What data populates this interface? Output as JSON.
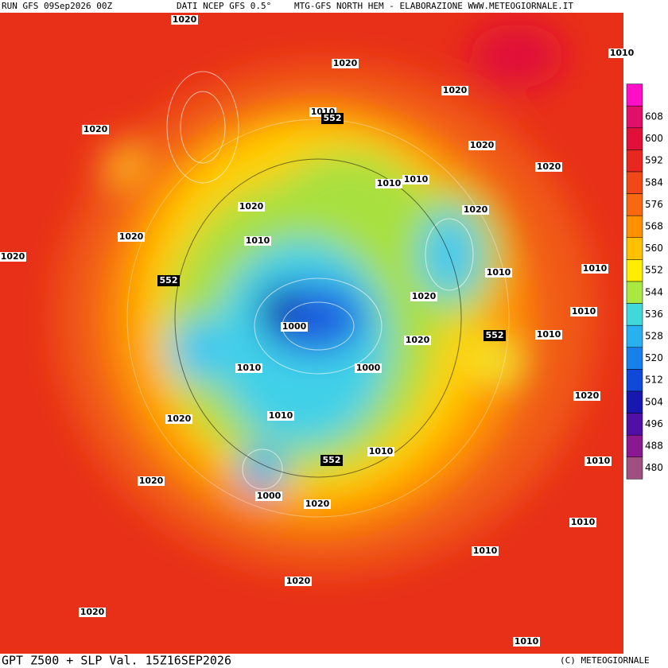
{
  "header": {
    "run": "RUN GFS 09Sep2026 00Z",
    "source": "DATI NCEP GFS 0.5°",
    "credit": "MTG-GFS NORTH HEM - ELABORAZIONE WWW.METEOGIORNALE.IT"
  },
  "footer": {
    "title": "GPT Z500 + SLP Val. 15Z16SEP2026",
    "copyright": "(C) METEOGIORNALE"
  },
  "colorbar": {
    "levels": [
      608,
      600,
      592,
      584,
      576,
      568,
      560,
      552,
      544,
      536,
      528,
      520,
      512,
      504,
      496,
      488,
      480
    ],
    "colors": [
      "#e01068",
      "#e01038",
      "#e82820",
      "#f04818",
      "#f86810",
      "#ff9000",
      "#ffc000",
      "#ffee00",
      "#a8e840",
      "#40d8d8",
      "#28b0f0",
      "#1880e8",
      "#1048d8",
      "#1818b0",
      "#5010a8",
      "#8a1890",
      "#a05080"
    ],
    "top_color": "#ff10c8"
  },
  "contour_labels": [
    {
      "text": "1020",
      "boxed": false
    },
    {
      "text": "1020",
      "boxed": false
    },
    {
      "text": "1010",
      "boxed": false
    },
    {
      "text": "1020",
      "boxed": false
    },
    {
      "text": "1010",
      "boxed": false
    },
    {
      "text": "552",
      "boxed": true
    },
    {
      "text": "1020",
      "boxed": false
    },
    {
      "text": "1020",
      "boxed": false
    },
    {
      "text": "1020",
      "boxed": false
    },
    {
      "text": "1010",
      "boxed": false
    },
    {
      "text": "1010",
      "boxed": false
    },
    {
      "text": "1020",
      "boxed": false
    },
    {
      "text": "1020",
      "boxed": false
    },
    {
      "text": "1020",
      "boxed": false
    },
    {
      "text": "1010",
      "boxed": false
    },
    {
      "text": "1020",
      "boxed": false
    },
    {
      "text": "552",
      "boxed": true
    },
    {
      "text": "1010",
      "boxed": false
    },
    {
      "text": "1010",
      "boxed": false
    },
    {
      "text": "1020",
      "boxed": false
    },
    {
      "text": "1010",
      "boxed": false
    },
    {
      "text": "1000",
      "boxed": false
    },
    {
      "text": "552",
      "boxed": true
    },
    {
      "text": "1010",
      "boxed": false
    },
    {
      "text": "1020",
      "boxed": false
    },
    {
      "text": "1010",
      "boxed": false
    },
    {
      "text": "1000",
      "boxed": false
    },
    {
      "text": "1020",
      "boxed": false
    },
    {
      "text": "1010",
      "boxed": false
    },
    {
      "text": "1020",
      "boxed": false
    },
    {
      "text": "1010",
      "boxed": false
    },
    {
      "text": "552",
      "boxed": true
    },
    {
      "text": "1010",
      "boxed": false
    },
    {
      "text": "1020",
      "boxed": false
    },
    {
      "text": "1000",
      "boxed": false
    },
    {
      "text": "1020",
      "boxed": false
    },
    {
      "text": "1010",
      "boxed": false
    },
    {
      "text": "1010",
      "boxed": false
    },
    {
      "text": "1020",
      "boxed": false
    },
    {
      "text": "1020",
      "boxed": false
    },
    {
      "text": "1010",
      "boxed": false
    }
  ]
}
